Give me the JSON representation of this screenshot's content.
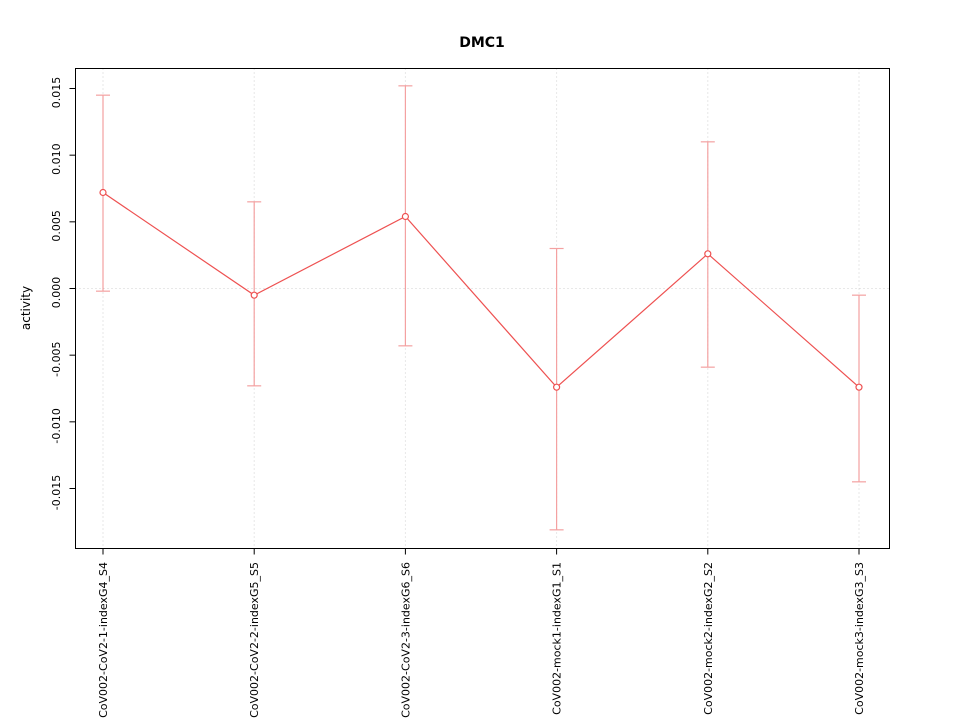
{
  "chart_data": {
    "type": "line",
    "title": "DMC1",
    "ylabel": "activity",
    "xlabel": "",
    "categories": [
      "CoV002-CoV2-1-indexG4_S4",
      "CoV002-CoV2-2-indexG5_S5",
      "CoV002-CoV2-3-indexG6_S6",
      "CoV002-mock1-indexG1_S1",
      "CoV002-mock2-indexG2_S2",
      "CoV002-mock3-indexG3_S3"
    ],
    "series": [
      {
        "name": "activity",
        "values": [
          0.0072,
          -0.0005,
          0.0054,
          -0.0074,
          0.0026,
          -0.0074
        ],
        "error_low": [
          -0.0002,
          -0.0073,
          -0.0043,
          -0.0181,
          -0.0059,
          -0.0145
        ],
        "error_high": [
          0.0145,
          0.0065,
          0.0152,
          0.003,
          0.011,
          -0.0005
        ]
      }
    ],
    "ylim": [
      -0.0195,
      0.0165
    ],
    "yticks": [
      "-0.015",
      "-0.010",
      "-0.005",
      "0.000",
      "0.005",
      "0.010",
      "0.015"
    ],
    "grid": {
      "vertical": true,
      "horizontal_at_zero": true
    },
    "legend": "none",
    "colors": {
      "line": "#ee5151",
      "errorbar": "#f4a1a1",
      "point_stroke": "#ee5151",
      "point_fill": "#ffffff",
      "grid": "#d0d0d0",
      "axis": "#000000"
    }
  }
}
